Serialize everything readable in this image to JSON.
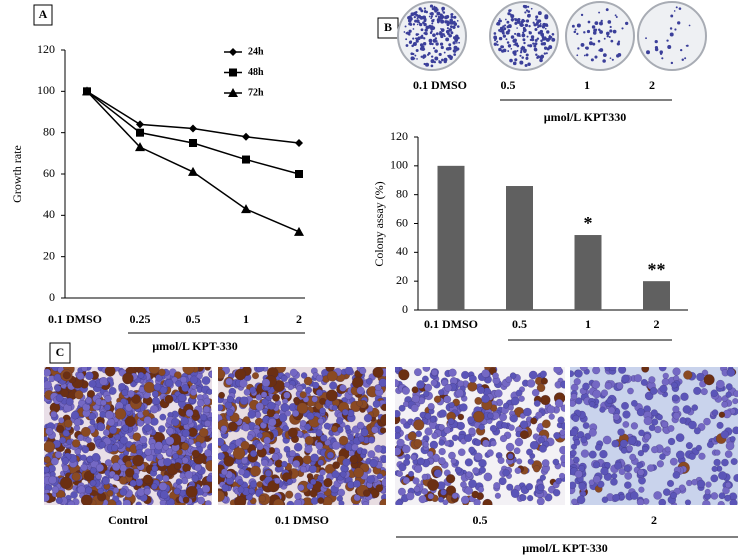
{
  "panel_labels": [
    "A",
    "B",
    "C"
  ],
  "chart_data": [
    {
      "type": "line",
      "y_label": "Growth rate",
      "categories": [
        "0.1 DMSO",
        "0.25",
        "0.5",
        "1",
        "2"
      ],
      "x_group_label": "µmol/L KPT-330",
      "series": [
        {
          "name": "24h",
          "color": "#000000",
          "marker": "diamond",
          "values": [
            100,
            84,
            82,
            78,
            75
          ]
        },
        {
          "name": "48h",
          "color": "#000000",
          "marker": "square",
          "values": [
            100,
            80,
            75,
            67,
            60
          ]
        },
        {
          "name": "72h",
          "color": "#000000",
          "marker": "triangle",
          "values": [
            100,
            73,
            61,
            43,
            32
          ]
        }
      ],
      "ylim": [
        0,
        120
      ],
      "yticks": [
        0,
        20,
        40,
        60,
        80,
        100,
        120
      ]
    },
    {
      "type": "bar",
      "y_label": "Colony assay (%)",
      "categories": [
        "0.1 DMSO",
        "0.5",
        "1",
        "2"
      ],
      "values": [
        100,
        86,
        52,
        20
      ],
      "significance": [
        null,
        null,
        "*",
        "**"
      ],
      "color": "#606060",
      "ylim": [
        0,
        120
      ],
      "yticks": [
        0,
        20,
        40,
        60,
        80,
        100,
        120
      ]
    }
  ],
  "colony_images": {
    "labels": [
      "0.1 DMSO",
      "0.5",
      "1",
      "2"
    ],
    "group_label": "µmol/L KPT330"
  },
  "cell_images": {
    "labels": [
      "Control",
      "0.1 DMSO",
      "0.5",
      "2"
    ],
    "group_label": "µmol/L KPT-330"
  }
}
